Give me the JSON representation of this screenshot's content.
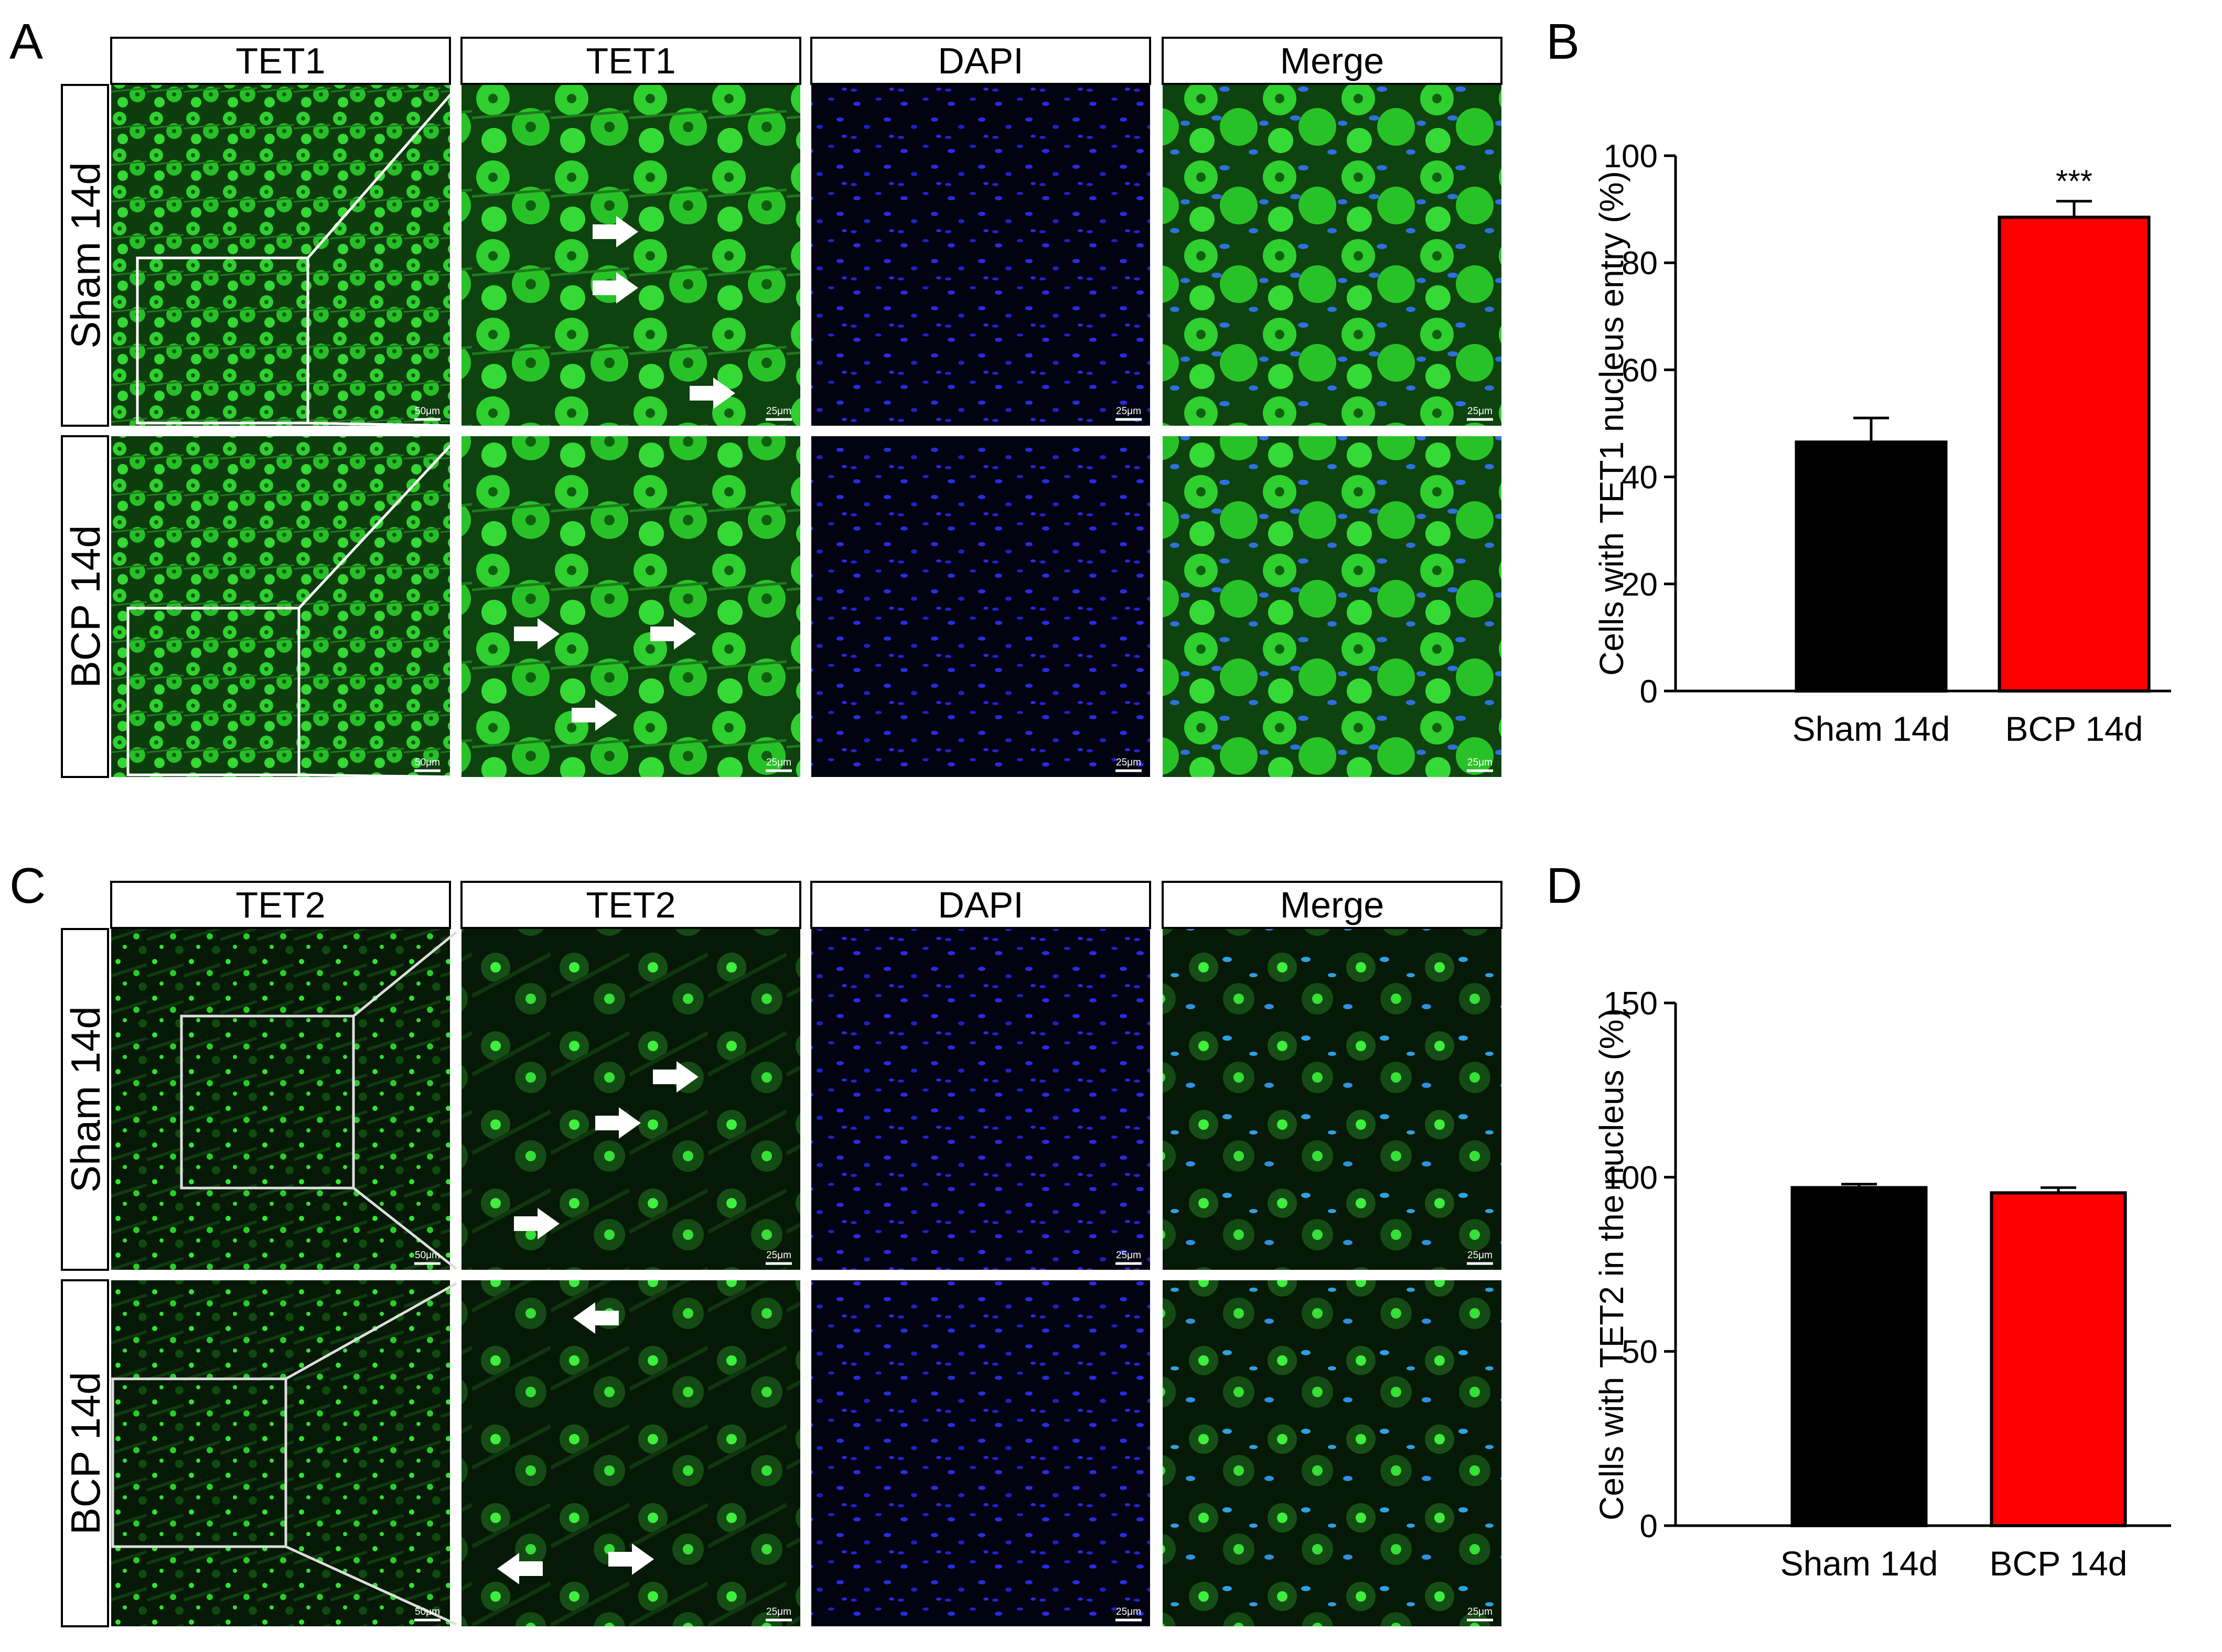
{
  "panel_A": {
    "letter": "A",
    "column_headers": [
      "TET1",
      "TET1",
      "DAPI",
      "Merge"
    ],
    "row_labels": [
      "Sham 14d",
      "BCP 14d"
    ],
    "scale_bars": [
      [
        "50μm",
        "25μm",
        "25μm",
        "25μm"
      ],
      [
        "50μm",
        "25μm",
        "25μm",
        "25μm"
      ]
    ]
  },
  "panel_C": {
    "letter": "C",
    "column_headers": [
      "TET2",
      "TET2",
      "DAPI",
      "Merge"
    ],
    "row_labels": [
      "Sham 14d",
      "BCP 14d"
    ],
    "scale_bars": [
      [
        "50μm",
        "25μm",
        "25μm",
        "25μm"
      ],
      [
        "50μm",
        "25μm",
        "25μm",
        "25μm"
      ]
    ]
  },
  "panel_B_letter": "B",
  "panel_D_letter": "D",
  "colors": {
    "tet_green": "#1fc21f",
    "dapi_blue": "#2626e0",
    "sham_bar": "#000000",
    "bcp_bar": "#ff0000"
  },
  "chart_data": [
    {
      "panel": "B",
      "type": "bar",
      "categories": [
        "Sham 14d",
        "BCP 14d"
      ],
      "values": [
        46.5,
        88.5
      ],
      "errors": [
        4.5,
        3.0
      ],
      "bar_colors": [
        "#000000",
        "#ff0000"
      ],
      "ylabel": "Cells with TET1 nucleus entry (%)",
      "ylim": [
        0,
        100
      ],
      "yticks": [
        "0",
        "20",
        "40",
        "60",
        "80",
        "100"
      ],
      "ytick_values": [
        0,
        20,
        40,
        60,
        80,
        100
      ],
      "significance": [
        "",
        "***"
      ]
    },
    {
      "panel": "D",
      "type": "bar",
      "categories": [
        "Sham 14d",
        "BCP 14d"
      ],
      "values": [
        97,
        95.5
      ],
      "errors": [
        1.0,
        1.5
      ],
      "bar_colors": [
        "#000000",
        "#ff0000"
      ],
      "ylabel": "Cells with TET2 in the nucleus  (%)",
      "ylim": [
        0,
        150
      ],
      "yticks": [
        "0",
        "50",
        "100",
        "150"
      ],
      "ytick_values": [
        0,
        50,
        100,
        150
      ],
      "significance": [
        "",
        ""
      ]
    }
  ]
}
